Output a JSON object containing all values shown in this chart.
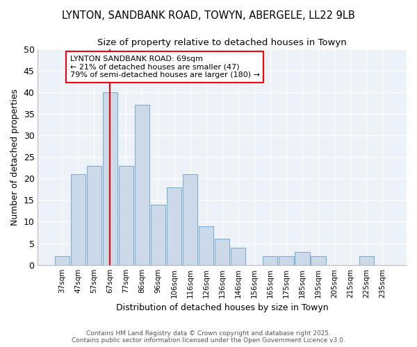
{
  "title1": "LYNTON, SANDBANK ROAD, TOWYN, ABERGELE, LL22 9LB",
  "title2": "Size of property relative to detached houses in Towyn",
  "xlabel": "Distribution of detached houses by size in Towyn",
  "ylabel": "Number of detached properties",
  "bar_labels": [
    "37sqm",
    "47sqm",
    "57sqm",
    "67sqm",
    "77sqm",
    "86sqm",
    "96sqm",
    "106sqm",
    "116sqm",
    "126sqm",
    "136sqm",
    "146sqm",
    "156sqm",
    "165sqm",
    "175sqm",
    "185sqm",
    "195sqm",
    "205sqm",
    "215sqm",
    "225sqm",
    "235sqm"
  ],
  "bar_values": [
    2,
    21,
    23,
    40,
    23,
    37,
    14,
    18,
    21,
    9,
    6,
    4,
    0,
    2,
    2,
    3,
    2,
    0,
    0,
    2,
    0
  ],
  "bar_color": "#ccd9e8",
  "bar_edge_color": "#7bafd4",
  "annotation_text": "LYNTON SANDBANK ROAD: 69sqm\n← 21% of detached houses are smaller (47)\n79% of semi-detached houses are larger (180) →",
  "ylim": [
    0,
    50
  ],
  "yticks": [
    0,
    5,
    10,
    15,
    20,
    25,
    30,
    35,
    40,
    45,
    50
  ],
  "footer": "Contains HM Land Registry data © Crown copyright and database right 2025.\nContains public sector information licensed under the Open Government Licence v3.0.",
  "bg_color": "#ffffff",
  "plot_bg_color": "#edf2f8",
  "grid_color": "#ffffff",
  "title1_fontsize": 10.5,
  "title2_fontsize": 9.5
}
